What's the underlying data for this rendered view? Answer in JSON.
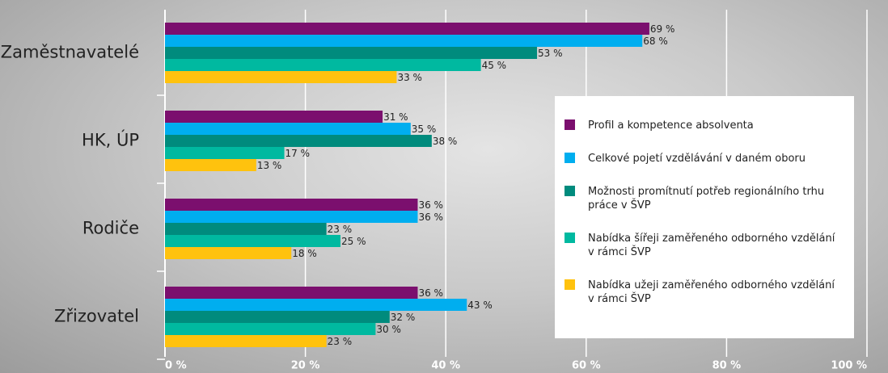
{
  "chart_data": {
    "type": "bar",
    "orientation": "horizontal",
    "categories": [
      "Zaměstnavatelé",
      "HK, ÚP",
      "Rodiče",
      "Zřizovatel"
    ],
    "series": [
      {
        "name": "Profil a kompetence absolventa",
        "color": "#7b0f6e",
        "values": [
          69,
          31,
          36,
          36
        ],
        "value_labels": [
          "69 %",
          "31 %",
          "36 %",
          "36 %"
        ]
      },
      {
        "name": "Celkové pojetí vzdělávání v daném oboru",
        "color": "#00aeef",
        "values": [
          68,
          35,
          36,
          43
        ],
        "value_labels": [
          "68 %",
          "35 %",
          "36 %",
          "43 %"
        ]
      },
      {
        "name": "Možnosti promítnutí potřeb regionálního trhu práce v ŠVP",
        "color": "#008b7d",
        "values": [
          53,
          38,
          23,
          32
        ],
        "value_labels": [
          "53 %",
          "38 %",
          "23 %",
          "32 %"
        ]
      },
      {
        "name": "Nabídka šířeji zaměřeného odborného vzdělání v rámci ŠVP",
        "color": "#00b9a0",
        "values": [
          45,
          17,
          25,
          30
        ],
        "value_labels": [
          "45 %",
          "17 %",
          "25 %",
          "30 %"
        ]
      },
      {
        "name": "Nabídka užeji zaměřeného odborného vzdělání v rámci ŠVP",
        "color": "#ffc20e",
        "values": [
          33,
          13,
          18,
          23
        ],
        "value_labels": [
          "33 %",
          "13 %",
          "18 %",
          "23 %"
        ]
      }
    ],
    "xlim": [
      0,
      100
    ],
    "xticks": [
      {
        "value": 0,
        "label": "0 %"
      },
      {
        "value": 20,
        "label": "20 %"
      },
      {
        "value": 40,
        "label": "40 %"
      },
      {
        "value": 60,
        "label": "60 %"
      },
      {
        "value": 80,
        "label": "80 %"
      },
      {
        "value": 100,
        "label": "100 %"
      }
    ],
    "grid": true
  }
}
